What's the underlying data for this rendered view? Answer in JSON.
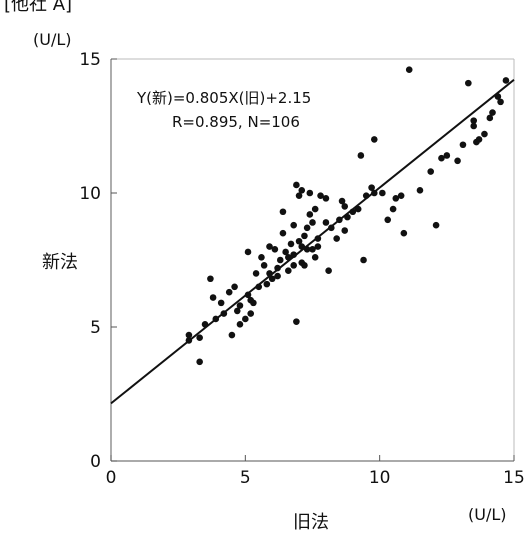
{
  "header_fragment": "[他社 A]",
  "chart_data": {
    "type": "scatter",
    "xlabel": "旧法",
    "ylabel": "新法",
    "x_unit": "(U/L)",
    "y_unit": "(U/L)",
    "xlim": [
      0,
      15
    ],
    "ylim": [
      0,
      15
    ],
    "x_ticks": [
      "0",
      "5",
      "10",
      "15"
    ],
    "y_ticks": [
      "0",
      "5",
      "10",
      "15"
    ],
    "grid": false,
    "equation": "Y(新)=0.805X(旧)+2.15",
    "stats": "R=0.895, N=106",
    "regression": {
      "slope": 0.805,
      "intercept": 2.15
    },
    "points": [
      [
        2.9,
        4.7
      ],
      [
        2.9,
        4.5
      ],
      [
        3.3,
        3.7
      ],
      [
        3.3,
        4.6
      ],
      [
        3.5,
        5.1
      ],
      [
        3.7,
        6.8
      ],
      [
        3.8,
        6.1
      ],
      [
        3.9,
        5.3
      ],
      [
        4.1,
        5.9
      ],
      [
        4.2,
        5.5
      ],
      [
        4.4,
        6.3
      ],
      [
        4.5,
        4.7
      ],
      [
        4.6,
        6.5
      ],
      [
        4.7,
        5.6
      ],
      [
        4.8,
        5.1
      ],
      [
        4.8,
        5.8
      ],
      [
        5.0,
        5.3
      ],
      [
        5.1,
        6.2
      ],
      [
        5.1,
        7.8
      ],
      [
        5.2,
        5.5
      ],
      [
        5.2,
        6.0
      ],
      [
        5.3,
        5.9
      ],
      [
        5.4,
        7.0
      ],
      [
        5.5,
        6.5
      ],
      [
        5.6,
        7.6
      ],
      [
        5.7,
        7.3
      ],
      [
        5.8,
        6.6
      ],
      [
        5.9,
        7.0
      ],
      [
        5.9,
        8.0
      ],
      [
        6.0,
        6.8
      ],
      [
        6.1,
        7.9
      ],
      [
        6.2,
        6.9
      ],
      [
        6.2,
        7.2
      ],
      [
        6.3,
        7.5
      ],
      [
        6.4,
        8.5
      ],
      [
        6.4,
        9.3
      ],
      [
        6.5,
        7.8
      ],
      [
        6.6,
        7.1
      ],
      [
        6.6,
        7.6
      ],
      [
        6.7,
        8.1
      ],
      [
        6.8,
        7.3
      ],
      [
        6.8,
        7.7
      ],
      [
        6.8,
        8.8
      ],
      [
        6.9,
        5.2
      ],
      [
        6.9,
        10.3
      ],
      [
        7.0,
        8.2
      ],
      [
        7.0,
        9.9
      ],
      [
        7.1,
        7.4
      ],
      [
        7.1,
        8.0
      ],
      [
        7.1,
        10.1
      ],
      [
        7.2,
        7.3
      ],
      [
        7.2,
        8.4
      ],
      [
        7.3,
        7.9
      ],
      [
        7.3,
        8.7
      ],
      [
        7.4,
        9.2
      ],
      [
        7.4,
        10.0
      ],
      [
        7.5,
        7.9
      ],
      [
        7.5,
        8.9
      ],
      [
        7.6,
        7.6
      ],
      [
        7.6,
        9.4
      ],
      [
        7.7,
        8.0
      ],
      [
        7.7,
        8.3
      ],
      [
        7.8,
        9.9
      ],
      [
        8.0,
        8.9
      ],
      [
        8.0,
        9.8
      ],
      [
        8.1,
        7.1
      ],
      [
        8.2,
        8.7
      ],
      [
        8.4,
        8.3
      ],
      [
        8.5,
        9.0
      ],
      [
        8.6,
        9.7
      ],
      [
        8.7,
        9.5
      ],
      [
        8.7,
        8.6
      ],
      [
        8.8,
        9.1
      ],
      [
        9.0,
        9.3
      ],
      [
        9.2,
        9.4
      ],
      [
        9.3,
        11.4
      ],
      [
        9.4,
        7.5
      ],
      [
        9.5,
        9.9
      ],
      [
        9.7,
        10.2
      ],
      [
        9.8,
        10.0
      ],
      [
        9.8,
        12.0
      ],
      [
        10.1,
        10.0
      ],
      [
        10.3,
        9.0
      ],
      [
        10.5,
        9.4
      ],
      [
        10.6,
        9.8
      ],
      [
        10.8,
        9.9
      ],
      [
        10.9,
        8.5
      ],
      [
        11.1,
        14.6
      ],
      [
        11.5,
        10.1
      ],
      [
        11.9,
        10.8
      ],
      [
        12.1,
        8.8
      ],
      [
        12.3,
        11.3
      ],
      [
        12.5,
        11.4
      ],
      [
        12.9,
        11.2
      ],
      [
        13.1,
        11.8
      ],
      [
        13.3,
        14.1
      ],
      [
        13.5,
        12.7
      ],
      [
        13.5,
        12.5
      ],
      [
        13.6,
        11.9
      ],
      [
        13.7,
        12.0
      ],
      [
        13.9,
        12.2
      ],
      [
        14.1,
        12.8
      ],
      [
        14.4,
        13.6
      ],
      [
        14.5,
        13.4
      ],
      [
        14.7,
        14.2
      ],
      [
        14.2,
        13.0
      ]
    ]
  }
}
